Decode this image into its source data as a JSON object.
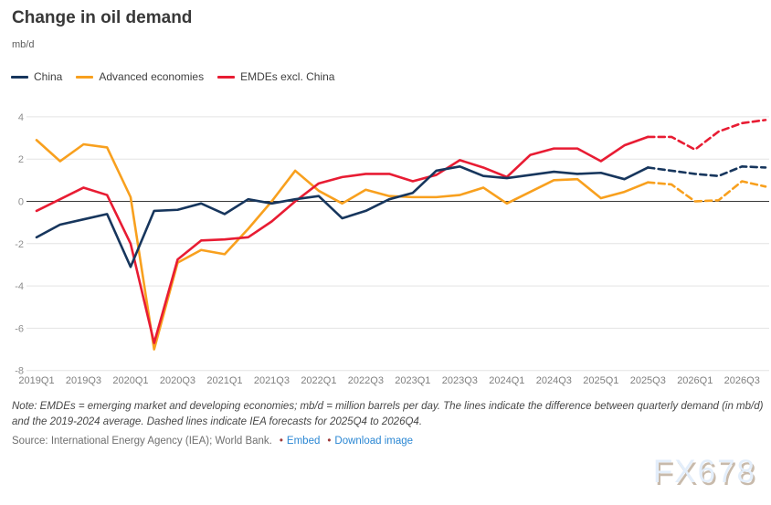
{
  "header": {
    "title": "Change in oil demand",
    "unit_label": "mb/d"
  },
  "legend": {
    "items": [
      {
        "label": "China",
        "color": "#17365d"
      },
      {
        "label": "Advanced economies",
        "color": "#f8a01e"
      },
      {
        "label": "EMDEs excl. China",
        "color": "#e81c33"
      }
    ]
  },
  "chart_data": {
    "type": "line",
    "title": "Change in oil demand",
    "ylabel": "mb/d",
    "ylim": [
      -8,
      4
    ],
    "yticks": [
      4,
      2,
      0,
      -2,
      -4,
      -6,
      -8
    ],
    "grid": true,
    "x_tick_step": 2,
    "forecast_start_index": 26,
    "forecast_note": "Dashed segments are IEA forecasts for 2025Q4 to 2026Q4",
    "x": [
      "2019Q1",
      "2019Q2",
      "2019Q3",
      "2019Q4",
      "2020Q1",
      "2020Q2",
      "2020Q3",
      "2020Q4",
      "2021Q1",
      "2021Q2",
      "2021Q3",
      "2021Q4",
      "2022Q1",
      "2022Q2",
      "2022Q3",
      "2022Q4",
      "2023Q1",
      "2023Q2",
      "2023Q3",
      "2023Q4",
      "2024Q1",
      "2024Q2",
      "2024Q3",
      "2024Q4",
      "2025Q1",
      "2025Q2",
      "2025Q3",
      "2025Q4",
      "2026Q1",
      "2026Q2",
      "2026Q3",
      "2026Q4"
    ],
    "series": [
      {
        "name": "China",
        "color": "#17365d",
        "values": [
          -1.7,
          -1.1,
          -0.85,
          -0.6,
          -3.1,
          -0.45,
          -0.4,
          -0.1,
          -0.6,
          0.1,
          -0.1,
          0.1,
          0.25,
          -0.8,
          -0.45,
          0.1,
          0.4,
          1.45,
          1.65,
          1.2,
          1.1,
          1.25,
          1.4,
          1.3,
          1.35,
          1.05,
          1.6,
          1.45,
          1.3,
          1.2,
          1.65,
          1.6
        ]
      },
      {
        "name": "Advanced economies",
        "color": "#f8a01e",
        "values": [
          2.9,
          1.9,
          2.7,
          2.55,
          0.2,
          -7.0,
          -2.9,
          -2.3,
          -2.5,
          -1.3,
          0.0,
          1.45,
          0.5,
          -0.1,
          0.55,
          0.25,
          0.2,
          0.2,
          0.3,
          0.65,
          -0.1,
          0.45,
          1.0,
          1.05,
          0.15,
          0.45,
          0.9,
          0.8,
          0.0,
          0.05,
          0.95,
          0.7
        ]
      },
      {
        "name": "EMDEs excl. China",
        "color": "#e81c33",
        "values": [
          -0.45,
          0.1,
          0.65,
          0.3,
          -2.0,
          -6.7,
          -2.75,
          -1.85,
          -1.8,
          -1.7,
          -0.95,
          0.0,
          0.85,
          1.15,
          1.3,
          1.3,
          0.95,
          1.25,
          1.95,
          1.6,
          1.15,
          2.2,
          2.5,
          2.5,
          1.9,
          2.65,
          3.05,
          3.05,
          2.45,
          3.3,
          3.7,
          3.85
        ]
      }
    ]
  },
  "footer": {
    "note": "Note: EMDEs = emerging market and developing economies; mb/d = million barrels per day. The lines indicate the difference between quarterly demand (in mb/d) and the 2019-2024 average. Dashed lines indicate IEA forecasts for 2025Q4 to 2026Q4.",
    "source": "Source: International Energy Agency (IEA); World Bank.",
    "bullet": "•",
    "links": [
      {
        "label": "Embed"
      },
      {
        "label": "Download image"
      }
    ]
  },
  "watermark": "FX678"
}
